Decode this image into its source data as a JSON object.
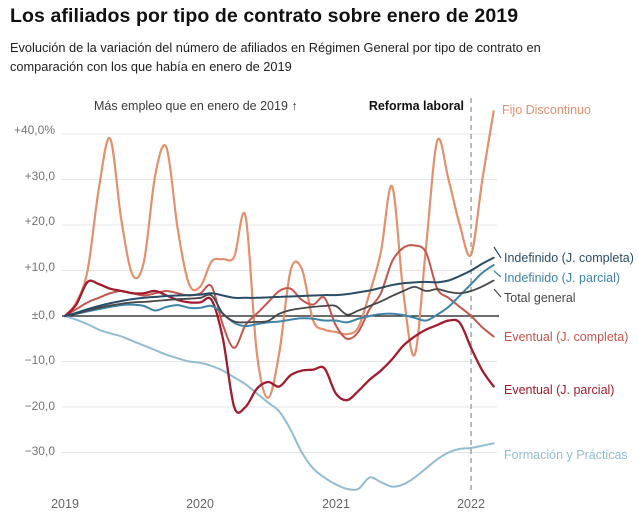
{
  "header": {
    "title": "Los afiliados por tipo de contrato sobre enero de 2019",
    "subtitle": "Evolución de la variación del número de afiliados en Régimen General por tipo de contrato en comparación con los que había en enero de 2019"
  },
  "annotations": {
    "more_employment": "Más empleo que en enero de 2019 ↑"
  },
  "chart_data": {
    "type": "line",
    "unit": "percent variation vs 2019-01",
    "grid": true,
    "ylim": [
      -40,
      46
    ],
    "x_ticks": [
      "2019",
      "2020",
      "2021",
      "2022"
    ],
    "y_ticks": [
      {
        "value": 40,
        "label": "+40,0%"
      },
      {
        "value": 30,
        "label": "+30,0"
      },
      {
        "value": 20,
        "label": "+20,0"
      },
      {
        "value": 10,
        "label": "+10,0"
      },
      {
        "value": 0,
        "label": "±0,0"
      },
      {
        "value": -10,
        "label": "−10,0"
      },
      {
        "value": -20,
        "label": "−20,0"
      },
      {
        "value": -30,
        "label": "−30,0"
      }
    ],
    "x": [
      "2019-01",
      "2019-02",
      "2019-03",
      "2019-04",
      "2019-05",
      "2019-06",
      "2019-07",
      "2019-08",
      "2019-09",
      "2019-10",
      "2019-11",
      "2019-12",
      "2020-01",
      "2020-02",
      "2020-03",
      "2020-04",
      "2020-05",
      "2020-06",
      "2020-07",
      "2020-08",
      "2020-09",
      "2020-10",
      "2020-11",
      "2020-12",
      "2021-01",
      "2021-02",
      "2021-03",
      "2021-04",
      "2021-05",
      "2021-06",
      "2021-07",
      "2021-08",
      "2021-09",
      "2021-10",
      "2021-11",
      "2021-12",
      "2022-01",
      "2022-02",
      "2022-03"
    ],
    "reference_line": {
      "x_index": 36,
      "label": "Reforma laboral"
    },
    "series": [
      {
        "name": "Fijo Discontinuo",
        "color": "#E2906E",
        "values": [
          0,
          3,
          10,
          28,
          39,
          21,
          9,
          12,
          31,
          37,
          19,
          7,
          6.5,
          12,
          12.5,
          13,
          22,
          -8,
          -18,
          -8,
          10,
          10.3,
          -1,
          -3,
          -3.5,
          -4,
          -2.5,
          5,
          14,
          28.5,
          5,
          -8.5,
          15,
          38.5,
          30,
          20,
          13.5,
          30,
          45
        ]
      },
      {
        "name": "Indefinido (J. completa)",
        "color": "#2A4D66",
        "values": [
          0,
          0.7,
          1.5,
          2.2,
          2.8,
          3.3,
          3.7,
          4,
          4.2,
          4.4,
          4.5,
          4.6,
          4.7,
          5,
          4.5,
          4,
          4,
          4,
          4.1,
          4.2,
          4.3,
          4.4,
          4.5,
          4.6,
          4.6,
          4.8,
          5.2,
          5.6,
          6.2,
          6.8,
          7.2,
          7.4,
          7.5,
          7.4,
          7.8,
          8.8,
          10,
          11.5,
          12.8
        ]
      },
      {
        "name": "Indefinido (J. parcial)",
        "color": "#3E84A8",
        "values": [
          0,
          0.5,
          1,
          1.5,
          2,
          2.4,
          2.5,
          2.2,
          1.2,
          2,
          2.4,
          1.8,
          1.8,
          2.2,
          0.5,
          -1.5,
          -2.2,
          -1.8,
          -1.4,
          -1.2,
          -0.8,
          -0.5,
          -0.6,
          -1,
          -1,
          -1.4,
          -0.6,
          0,
          0.4,
          0.5,
          0.2,
          -0.4,
          -1,
          0.3,
          2,
          4.5,
          7,
          9.5,
          11.2
        ]
      },
      {
        "name": "Total general",
        "color": "#474747",
        "values": [
          0,
          0.5,
          1.2,
          1.8,
          2.3,
          2.7,
          3,
          3.1,
          3.3,
          3.5,
          3.7,
          3.8,
          4,
          4.5,
          0.5,
          -1.2,
          -1.4,
          -1.3,
          -1.1,
          0.5,
          1.3,
          1.7,
          2,
          2.2,
          2.2,
          0.3,
          1.2,
          2.2,
          3.2,
          4.4,
          5.5,
          6.4,
          5.5,
          5.9,
          5.3,
          5,
          5.5,
          6.5,
          7.8
        ]
      },
      {
        "name": "Eventual (J. completa)",
        "color": "#C3564E",
        "values": [
          0,
          1.5,
          3,
          4,
          5,
          5.5,
          5,
          4.5,
          5,
          5.5,
          5,
          4.5,
          5,
          6.5,
          -2,
          -7,
          -2,
          0.5,
          3,
          5.5,
          6,
          3.5,
          2.5,
          4,
          -2,
          -5,
          -3.5,
          1.5,
          5,
          12,
          15,
          15.5,
          14,
          6,
          4,
          2,
          0,
          -2.5,
          -4.5
        ]
      },
      {
        "name": "Eventual (J. parcial)",
        "color": "#A01C30",
        "values": [
          0,
          2.5,
          7.5,
          7,
          6,
          5.5,
          5,
          5,
          5.5,
          4.5,
          3.5,
          3,
          3,
          3.5,
          -5,
          -20,
          -20,
          -16,
          -14.5,
          -15.5,
          -13,
          -12,
          -11.8,
          -11.5,
          -17,
          -18.5,
          -16.5,
          -14,
          -12,
          -9.5,
          -6.5,
          -4.5,
          -3,
          -2,
          -1,
          -1.5,
          -7,
          -12,
          -15.5
        ]
      },
      {
        "name": "Formación y Prácticas",
        "color": "#93BCD2",
        "values": [
          0,
          -0.8,
          -1.8,
          -3,
          -3.8,
          -4.5,
          -5.5,
          -6.5,
          -7.5,
          -8.5,
          -9.3,
          -10,
          -10.3,
          -11,
          -12,
          -13.5,
          -15,
          -17,
          -19,
          -21,
          -25,
          -30,
          -33.5,
          -35.5,
          -37,
          -38,
          -38,
          -35.5,
          -36.5,
          -37.5,
          -37,
          -35.5,
          -33.5,
          -31.5,
          -30,
          -29.2,
          -29,
          -28.5,
          -28
        ]
      }
    ]
  }
}
